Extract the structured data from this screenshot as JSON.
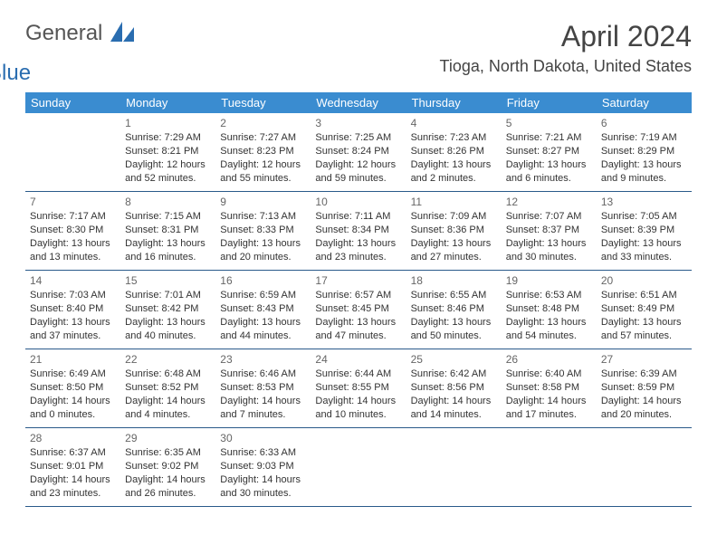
{
  "brand": {
    "part1": "General",
    "part2": "Blue"
  },
  "title": "April 2024",
  "location": "Tioga, North Dakota, United States",
  "colors": {
    "header_bg": "#3a8cd0",
    "header_text": "#ffffff",
    "row_border": "#2a5a8a",
    "title_color": "#444444",
    "text_color": "#333333",
    "daynum_color": "#666666",
    "background": "#ffffff"
  },
  "weekdays": [
    "Sunday",
    "Monday",
    "Tuesday",
    "Wednesday",
    "Thursday",
    "Friday",
    "Saturday"
  ],
  "weeks": [
    [
      null,
      {
        "day": "1",
        "sunrise": "Sunrise: 7:29 AM",
        "sunset": "Sunset: 8:21 PM",
        "daylight": "Daylight: 12 hours and 52 minutes."
      },
      {
        "day": "2",
        "sunrise": "Sunrise: 7:27 AM",
        "sunset": "Sunset: 8:23 PM",
        "daylight": "Daylight: 12 hours and 55 minutes."
      },
      {
        "day": "3",
        "sunrise": "Sunrise: 7:25 AM",
        "sunset": "Sunset: 8:24 PM",
        "daylight": "Daylight: 12 hours and 59 minutes."
      },
      {
        "day": "4",
        "sunrise": "Sunrise: 7:23 AM",
        "sunset": "Sunset: 8:26 PM",
        "daylight": "Daylight: 13 hours and 2 minutes."
      },
      {
        "day": "5",
        "sunrise": "Sunrise: 7:21 AM",
        "sunset": "Sunset: 8:27 PM",
        "daylight": "Daylight: 13 hours and 6 minutes."
      },
      {
        "day": "6",
        "sunrise": "Sunrise: 7:19 AM",
        "sunset": "Sunset: 8:29 PM",
        "daylight": "Daylight: 13 hours and 9 minutes."
      }
    ],
    [
      {
        "day": "7",
        "sunrise": "Sunrise: 7:17 AM",
        "sunset": "Sunset: 8:30 PM",
        "daylight": "Daylight: 13 hours and 13 minutes."
      },
      {
        "day": "8",
        "sunrise": "Sunrise: 7:15 AM",
        "sunset": "Sunset: 8:31 PM",
        "daylight": "Daylight: 13 hours and 16 minutes."
      },
      {
        "day": "9",
        "sunrise": "Sunrise: 7:13 AM",
        "sunset": "Sunset: 8:33 PM",
        "daylight": "Daylight: 13 hours and 20 minutes."
      },
      {
        "day": "10",
        "sunrise": "Sunrise: 7:11 AM",
        "sunset": "Sunset: 8:34 PM",
        "daylight": "Daylight: 13 hours and 23 minutes."
      },
      {
        "day": "11",
        "sunrise": "Sunrise: 7:09 AM",
        "sunset": "Sunset: 8:36 PM",
        "daylight": "Daylight: 13 hours and 27 minutes."
      },
      {
        "day": "12",
        "sunrise": "Sunrise: 7:07 AM",
        "sunset": "Sunset: 8:37 PM",
        "daylight": "Daylight: 13 hours and 30 minutes."
      },
      {
        "day": "13",
        "sunrise": "Sunrise: 7:05 AM",
        "sunset": "Sunset: 8:39 PM",
        "daylight": "Daylight: 13 hours and 33 minutes."
      }
    ],
    [
      {
        "day": "14",
        "sunrise": "Sunrise: 7:03 AM",
        "sunset": "Sunset: 8:40 PM",
        "daylight": "Daylight: 13 hours and 37 minutes."
      },
      {
        "day": "15",
        "sunrise": "Sunrise: 7:01 AM",
        "sunset": "Sunset: 8:42 PM",
        "daylight": "Daylight: 13 hours and 40 minutes."
      },
      {
        "day": "16",
        "sunrise": "Sunrise: 6:59 AM",
        "sunset": "Sunset: 8:43 PM",
        "daylight": "Daylight: 13 hours and 44 minutes."
      },
      {
        "day": "17",
        "sunrise": "Sunrise: 6:57 AM",
        "sunset": "Sunset: 8:45 PM",
        "daylight": "Daylight: 13 hours and 47 minutes."
      },
      {
        "day": "18",
        "sunrise": "Sunrise: 6:55 AM",
        "sunset": "Sunset: 8:46 PM",
        "daylight": "Daylight: 13 hours and 50 minutes."
      },
      {
        "day": "19",
        "sunrise": "Sunrise: 6:53 AM",
        "sunset": "Sunset: 8:48 PM",
        "daylight": "Daylight: 13 hours and 54 minutes."
      },
      {
        "day": "20",
        "sunrise": "Sunrise: 6:51 AM",
        "sunset": "Sunset: 8:49 PM",
        "daylight": "Daylight: 13 hours and 57 minutes."
      }
    ],
    [
      {
        "day": "21",
        "sunrise": "Sunrise: 6:49 AM",
        "sunset": "Sunset: 8:50 PM",
        "daylight": "Daylight: 14 hours and 0 minutes."
      },
      {
        "day": "22",
        "sunrise": "Sunrise: 6:48 AM",
        "sunset": "Sunset: 8:52 PM",
        "daylight": "Daylight: 14 hours and 4 minutes."
      },
      {
        "day": "23",
        "sunrise": "Sunrise: 6:46 AM",
        "sunset": "Sunset: 8:53 PM",
        "daylight": "Daylight: 14 hours and 7 minutes."
      },
      {
        "day": "24",
        "sunrise": "Sunrise: 6:44 AM",
        "sunset": "Sunset: 8:55 PM",
        "daylight": "Daylight: 14 hours and 10 minutes."
      },
      {
        "day": "25",
        "sunrise": "Sunrise: 6:42 AM",
        "sunset": "Sunset: 8:56 PM",
        "daylight": "Daylight: 14 hours and 14 minutes."
      },
      {
        "day": "26",
        "sunrise": "Sunrise: 6:40 AM",
        "sunset": "Sunset: 8:58 PM",
        "daylight": "Daylight: 14 hours and 17 minutes."
      },
      {
        "day": "27",
        "sunrise": "Sunrise: 6:39 AM",
        "sunset": "Sunset: 8:59 PM",
        "daylight": "Daylight: 14 hours and 20 minutes."
      }
    ],
    [
      {
        "day": "28",
        "sunrise": "Sunrise: 6:37 AM",
        "sunset": "Sunset: 9:01 PM",
        "daylight": "Daylight: 14 hours and 23 minutes."
      },
      {
        "day": "29",
        "sunrise": "Sunrise: 6:35 AM",
        "sunset": "Sunset: 9:02 PM",
        "daylight": "Daylight: 14 hours and 26 minutes."
      },
      {
        "day": "30",
        "sunrise": "Sunrise: 6:33 AM",
        "sunset": "Sunset: 9:03 PM",
        "daylight": "Daylight: 14 hours and 30 minutes."
      },
      null,
      null,
      null,
      null
    ]
  ]
}
